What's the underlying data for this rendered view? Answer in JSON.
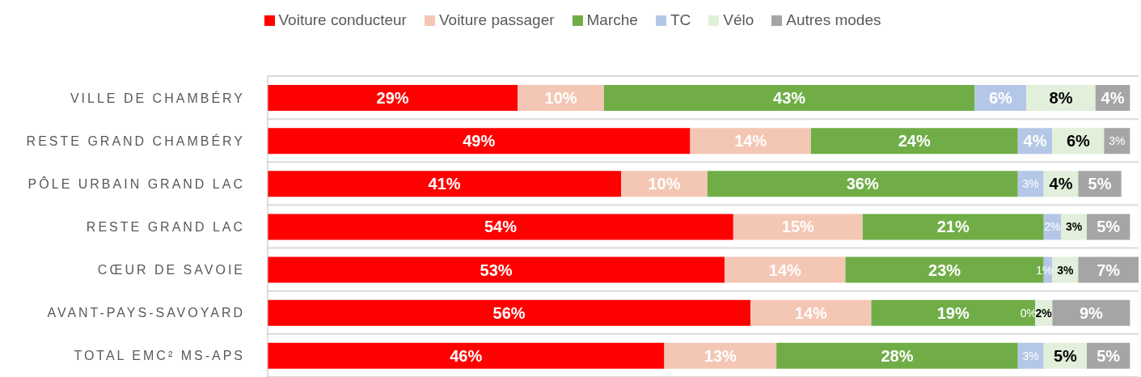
{
  "chart_data": {
    "type": "bar",
    "orientation": "horizontal",
    "stacked": true,
    "legend": "top",
    "grid": "y",
    "categories": [
      "VILLE DE CHAMBÉRY",
      "RESTE GRAND CHAMBÉRY",
      "PÔLE URBAIN GRAND LAC",
      "RESTE GRAND LAC",
      "CŒUR DE SAVOIE",
      "AVANT-PAYS-SAVOYARD",
      "TOTAL EMC² MS-APS"
    ],
    "series": [
      {
        "name": "Voiture conducteur",
        "color": "#ff0000",
        "values": [
          29,
          49,
          41,
          54,
          53,
          56,
          46
        ],
        "value_labels": [
          "29%",
          "49%",
          "41%",
          "54%",
          "53%",
          "56%",
          "46%"
        ]
      },
      {
        "name": "Voiture passager",
        "color": "#f4c7b4",
        "values": [
          10,
          14,
          10,
          15,
          14,
          14,
          13
        ],
        "value_labels": [
          "10%",
          "14%",
          "10%",
          "15%",
          "14%",
          "14%",
          "13%"
        ]
      },
      {
        "name": "Marche",
        "color": "#70ad47",
        "values": [
          43,
          24,
          36,
          21,
          23,
          19,
          28
        ],
        "value_labels": [
          "43%",
          "24%",
          "36%",
          "21%",
          "23%",
          "19%",
          "28%"
        ]
      },
      {
        "name": "TC",
        "color": "#b4c7e7",
        "values": [
          6,
          4,
          3,
          2,
          1,
          0,
          3
        ],
        "value_labels": [
          "6%",
          "4%",
          "3%",
          "2%",
          "1%",
          "0%",
          "3%"
        ]
      },
      {
        "name": "Vélo",
        "color": "#e2efda",
        "values": [
          8,
          6,
          4,
          3,
          3,
          2,
          5
        ],
        "value_labels": [
          "8%",
          "6%",
          "4%",
          "3%",
          "3%",
          "2%",
          "5%"
        ]
      },
      {
        "name": "Autres modes",
        "color": "#a5a5a5",
        "values": [
          4,
          3,
          5,
          5,
          7,
          9,
          5
        ],
        "value_labels": [
          "4%",
          "3%",
          "5%",
          "5%",
          "7%",
          "9%",
          "5%"
        ]
      }
    ]
  }
}
